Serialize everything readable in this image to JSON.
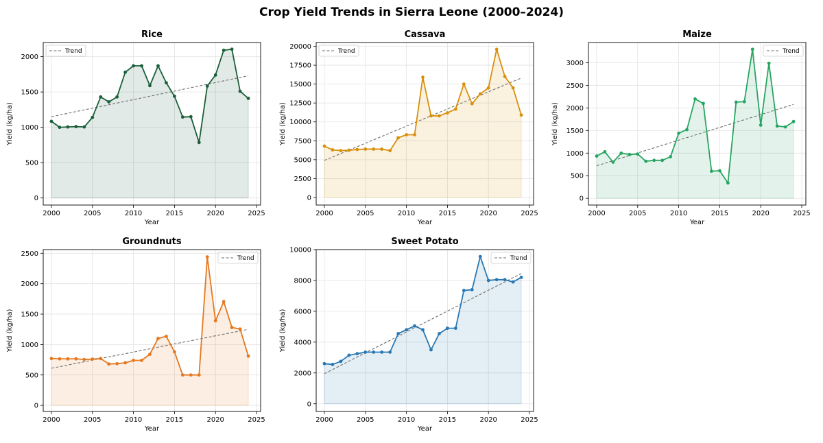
{
  "figure": {
    "title": "Crop Yield Trends in Sierra Leone (2000–2024)"
  },
  "chart_data": [
    {
      "type": "line",
      "title": "Rice",
      "xlabel": "Year",
      "ylabel": "Yield (kg/ha)",
      "color": "#1a5e3a",
      "x": [
        2000,
        2001,
        2002,
        2003,
        2004,
        2005,
        2006,
        2007,
        2008,
        2009,
        2010,
        2011,
        2012,
        2013,
        2014,
        2015,
        2016,
        2017,
        2018,
        2019,
        2020,
        2021,
        2022,
        2023,
        2024
      ],
      "values": [
        1085,
        1000,
        1005,
        1010,
        1005,
        1140,
        1430,
        1360,
        1430,
        1780,
        1870,
        1870,
        1590,
        1870,
        1630,
        1440,
        1145,
        1150,
        785,
        1585,
        1740,
        2090,
        2105,
        1510,
        1410
      ],
      "trend_label": "Trend",
      "trend": [
        1150,
        1730
      ],
      "xlim": [
        1999,
        2025.5
      ],
      "ylim": [
        -100,
        2200
      ],
      "xticks": [
        2000,
        2005,
        2010,
        2015,
        2020,
        2025
      ],
      "yticks": [
        0,
        500,
        1000,
        1500,
        2000
      ],
      "legend": "upper-left",
      "grid": true
    },
    {
      "type": "line",
      "title": "Cassava",
      "xlabel": "Year",
      "ylabel": "Yield (kg/ha)",
      "color": "#d98f0b",
      "x": [
        2000,
        2001,
        2002,
        2003,
        2004,
        2005,
        2006,
        2007,
        2008,
        2009,
        2010,
        2011,
        2012,
        2013,
        2014,
        2015,
        2016,
        2017,
        2018,
        2019,
        2020,
        2021,
        2022,
        2023,
        2024
      ],
      "values": [
        6800,
        6300,
        6200,
        6250,
        6350,
        6400,
        6400,
        6400,
        6200,
        7900,
        8300,
        8300,
        15900,
        10800,
        10800,
        11200,
        11700,
        15000,
        12400,
        13700,
        14500,
        19600,
        16000,
        14500,
        10900
      ],
      "trend_label": "Trend",
      "trend": [
        4900,
        15800
      ],
      "xlim": [
        1999,
        2025.5
      ],
      "ylim": [
        -1000,
        20500
      ],
      "xticks": [
        2000,
        2005,
        2010,
        2015,
        2020,
        2025
      ],
      "yticks": [
        0,
        2500,
        5000,
        7500,
        10000,
        12500,
        15000,
        17500,
        20000
      ],
      "legend": "upper-left",
      "grid": true
    },
    {
      "type": "line",
      "title": "Maize",
      "xlabel": "Year",
      "ylabel": "Yield (kg/ha)",
      "color": "#27a562",
      "x": [
        2000,
        2001,
        2002,
        2003,
        2004,
        2005,
        2006,
        2007,
        2008,
        2009,
        2010,
        2011,
        2012,
        2013,
        2014,
        2015,
        2016,
        2017,
        2018,
        2019,
        2020,
        2021,
        2022,
        2023,
        2024
      ],
      "values": [
        935,
        1030,
        800,
        1000,
        970,
        980,
        820,
        840,
        840,
        920,
        1440,
        1520,
        2200,
        2100,
        600,
        610,
        340,
        2130,
        2140,
        3300,
        1620,
        2990,
        1600,
        1580,
        1700
      ],
      "trend_label": "Trend",
      "trend": [
        720,
        2080
      ],
      "xlim": [
        1999,
        2025.5
      ],
      "ylim": [
        -150,
        3450
      ],
      "xticks": [
        2000,
        2005,
        2010,
        2015,
        2020,
        2025
      ],
      "yticks": [
        0,
        500,
        1000,
        1500,
        2000,
        2500,
        3000
      ],
      "legend": "upper-right",
      "grid": true
    },
    {
      "type": "line",
      "title": "Groundnuts",
      "xlabel": "Year",
      "ylabel": "Yield (kg/ha)",
      "color": "#e4781f",
      "x": [
        2000,
        2001,
        2002,
        2003,
        2004,
        2005,
        2006,
        2007,
        2008,
        2009,
        2010,
        2011,
        2012,
        2013,
        2014,
        2015,
        2016,
        2017,
        2018,
        2019,
        2020,
        2021,
        2022,
        2023,
        2024
      ],
      "values": [
        770,
        765,
        765,
        765,
        755,
        760,
        770,
        680,
        685,
        700,
        740,
        740,
        840,
        1100,
        1135,
        880,
        500,
        500,
        500,
        2440,
        1390,
        1705,
        1280,
        1255,
        810
      ],
      "trend_label": "Trend",
      "trend": [
        610,
        1250
      ],
      "xlim": [
        1999,
        2025.5
      ],
      "ylim": [
        -100,
        2560
      ],
      "xticks": [
        2000,
        2005,
        2010,
        2015,
        2020,
        2025
      ],
      "yticks": [
        0,
        500,
        1000,
        1500,
        2000,
        2500
      ],
      "legend": "upper-right",
      "grid": true
    },
    {
      "type": "line",
      "title": "Sweet Potato",
      "xlabel": "Year",
      "ylabel": "Yield (kg/ha)",
      "color": "#2a78b2",
      "x": [
        2000,
        2001,
        2002,
        2003,
        2004,
        2005,
        2006,
        2007,
        2008,
        2009,
        2010,
        2011,
        2012,
        2013,
        2014,
        2015,
        2016,
        2017,
        2018,
        2019,
        2020,
        2021,
        2022,
        2023,
        2024
      ],
      "values": [
        2600,
        2550,
        2750,
        3150,
        3250,
        3350,
        3350,
        3350,
        3350,
        4550,
        4800,
        5050,
        4800,
        3500,
        4550,
        4900,
        4900,
        7350,
        7400,
        9550,
        8000,
        8050,
        8050,
        7900,
        8200
      ],
      "trend_label": "Trend",
      "trend": [
        1950,
        8450
      ],
      "xlim": [
        1999,
        2025.5
      ],
      "ylim": [
        -500,
        10000
      ],
      "xticks": [
        2000,
        2005,
        2010,
        2015,
        2020,
        2025
      ],
      "yticks": [
        0,
        2000,
        4000,
        6000,
        8000,
        10000
      ],
      "legend": "upper-right",
      "grid": true
    }
  ]
}
